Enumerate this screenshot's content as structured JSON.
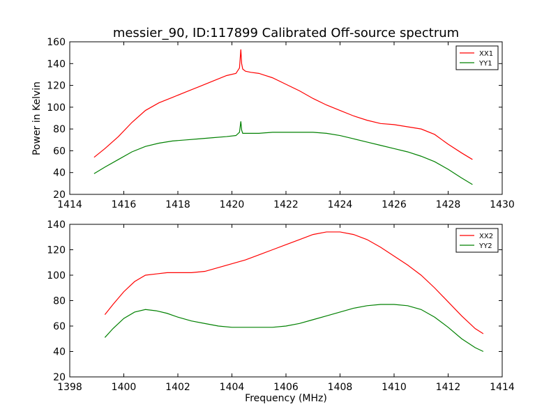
{
  "chart_data": [
    {
      "type": "line",
      "title": "messier_90, ID:117899 Calibrated Off-source spectrum",
      "xlabel": "",
      "ylabel": "Power in Kelvin",
      "xlim": [
        1414,
        1430
      ],
      "ylim": [
        20,
        160
      ],
      "xticks": [
        1414,
        1416,
        1418,
        1420,
        1422,
        1424,
        1426,
        1428,
        1430
      ],
      "yticks": [
        20,
        40,
        60,
        80,
        100,
        120,
        140,
        160
      ],
      "grid": false,
      "legend": "top-right",
      "series": [
        {
          "name": "XX1",
          "color": "#ff0000",
          "x": [
            1414.9,
            1415.3,
            1415.8,
            1416.3,
            1416.8,
            1417.3,
            1417.8,
            1418.3,
            1418.8,
            1419.3,
            1419.8,
            1420.15,
            1420.28,
            1420.33,
            1420.36,
            1420.4,
            1420.5,
            1420.7,
            1421.0,
            1421.5,
            1422.0,
            1422.5,
            1423.0,
            1423.5,
            1424.0,
            1424.5,
            1425.0,
            1425.5,
            1426.0,
            1426.5,
            1427.0,
            1427.5,
            1428.0,
            1428.5,
            1428.9
          ],
          "y": [
            54,
            62,
            73,
            86,
            97,
            104,
            109,
            114,
            119,
            124,
            129,
            131,
            136,
            153,
            140,
            135,
            133,
            132,
            131,
            127,
            121,
            115,
            108,
            102,
            97,
            92,
            88,
            85,
            84,
            82,
            80,
            75,
            66,
            58,
            52
          ]
        },
        {
          "name": "YY1",
          "color": "#008000",
          "x": [
            1414.9,
            1415.3,
            1415.8,
            1416.3,
            1416.8,
            1417.3,
            1417.8,
            1418.3,
            1418.8,
            1419.3,
            1419.8,
            1420.15,
            1420.28,
            1420.33,
            1420.36,
            1420.4,
            1420.5,
            1421.0,
            1421.5,
            1422.0,
            1422.5,
            1423.0,
            1423.5,
            1424.0,
            1424.5,
            1425.0,
            1425.5,
            1426.0,
            1426.5,
            1427.0,
            1427.5,
            1428.0,
            1428.5,
            1428.9
          ],
          "y": [
            39,
            45,
            52,
            59,
            64,
            67,
            69,
            70,
            71,
            72,
            73,
            74,
            77,
            87,
            79,
            76,
            76,
            76,
            77,
            77,
            77,
            77,
            76,
            74,
            71,
            68,
            65,
            62,
            59,
            55,
            50,
            43,
            35,
            29
          ]
        }
      ]
    },
    {
      "type": "line",
      "title": "",
      "xlabel": "Frequency (MHz)",
      "ylabel": "",
      "xlim": [
        1398,
        1414
      ],
      "ylim": [
        20,
        140
      ],
      "xticks": [
        1398,
        1400,
        1402,
        1404,
        1406,
        1408,
        1410,
        1412,
        1414
      ],
      "yticks": [
        20,
        40,
        60,
        80,
        100,
        120,
        140
      ],
      "grid": false,
      "legend": "top-right",
      "series": [
        {
          "name": "XX2",
          "color": "#ff0000",
          "x": [
            1399.3,
            1399.6,
            1400.0,
            1400.4,
            1400.8,
            1401.2,
            1401.6,
            1402.0,
            1402.5,
            1403.0,
            1403.5,
            1404.0,
            1404.5,
            1405.0,
            1405.5,
            1406.0,
            1406.5,
            1407.0,
            1407.5,
            1408.0,
            1408.5,
            1409.0,
            1409.5,
            1410.0,
            1410.5,
            1411.0,
            1411.5,
            1412.0,
            1412.5,
            1413.0,
            1413.3
          ],
          "y": [
            69,
            77,
            87,
            95,
            100,
            101,
            102,
            102,
            102,
            103,
            106,
            109,
            112,
            116,
            120,
            124,
            128,
            132,
            134,
            134,
            132,
            128,
            122,
            115,
            108,
            100,
            90,
            79,
            68,
            58,
            54
          ]
        },
        {
          "name": "YY2",
          "color": "#008000",
          "x": [
            1399.3,
            1399.6,
            1400.0,
            1400.4,
            1400.8,
            1401.2,
            1401.6,
            1402.0,
            1402.5,
            1403.0,
            1403.5,
            1404.0,
            1404.5,
            1405.0,
            1405.5,
            1406.0,
            1406.5,
            1407.0,
            1407.5,
            1408.0,
            1408.5,
            1409.0,
            1409.5,
            1410.0,
            1410.5,
            1411.0,
            1411.5,
            1412.0,
            1412.5,
            1413.0,
            1413.3
          ],
          "y": [
            51,
            58,
            66,
            71,
            73,
            72,
            70,
            67,
            64,
            62,
            60,
            59,
            59,
            59,
            59,
            60,
            62,
            65,
            68,
            71,
            74,
            76,
            77,
            77,
            76,
            73,
            67,
            59,
            50,
            43,
            40
          ]
        }
      ]
    }
  ]
}
